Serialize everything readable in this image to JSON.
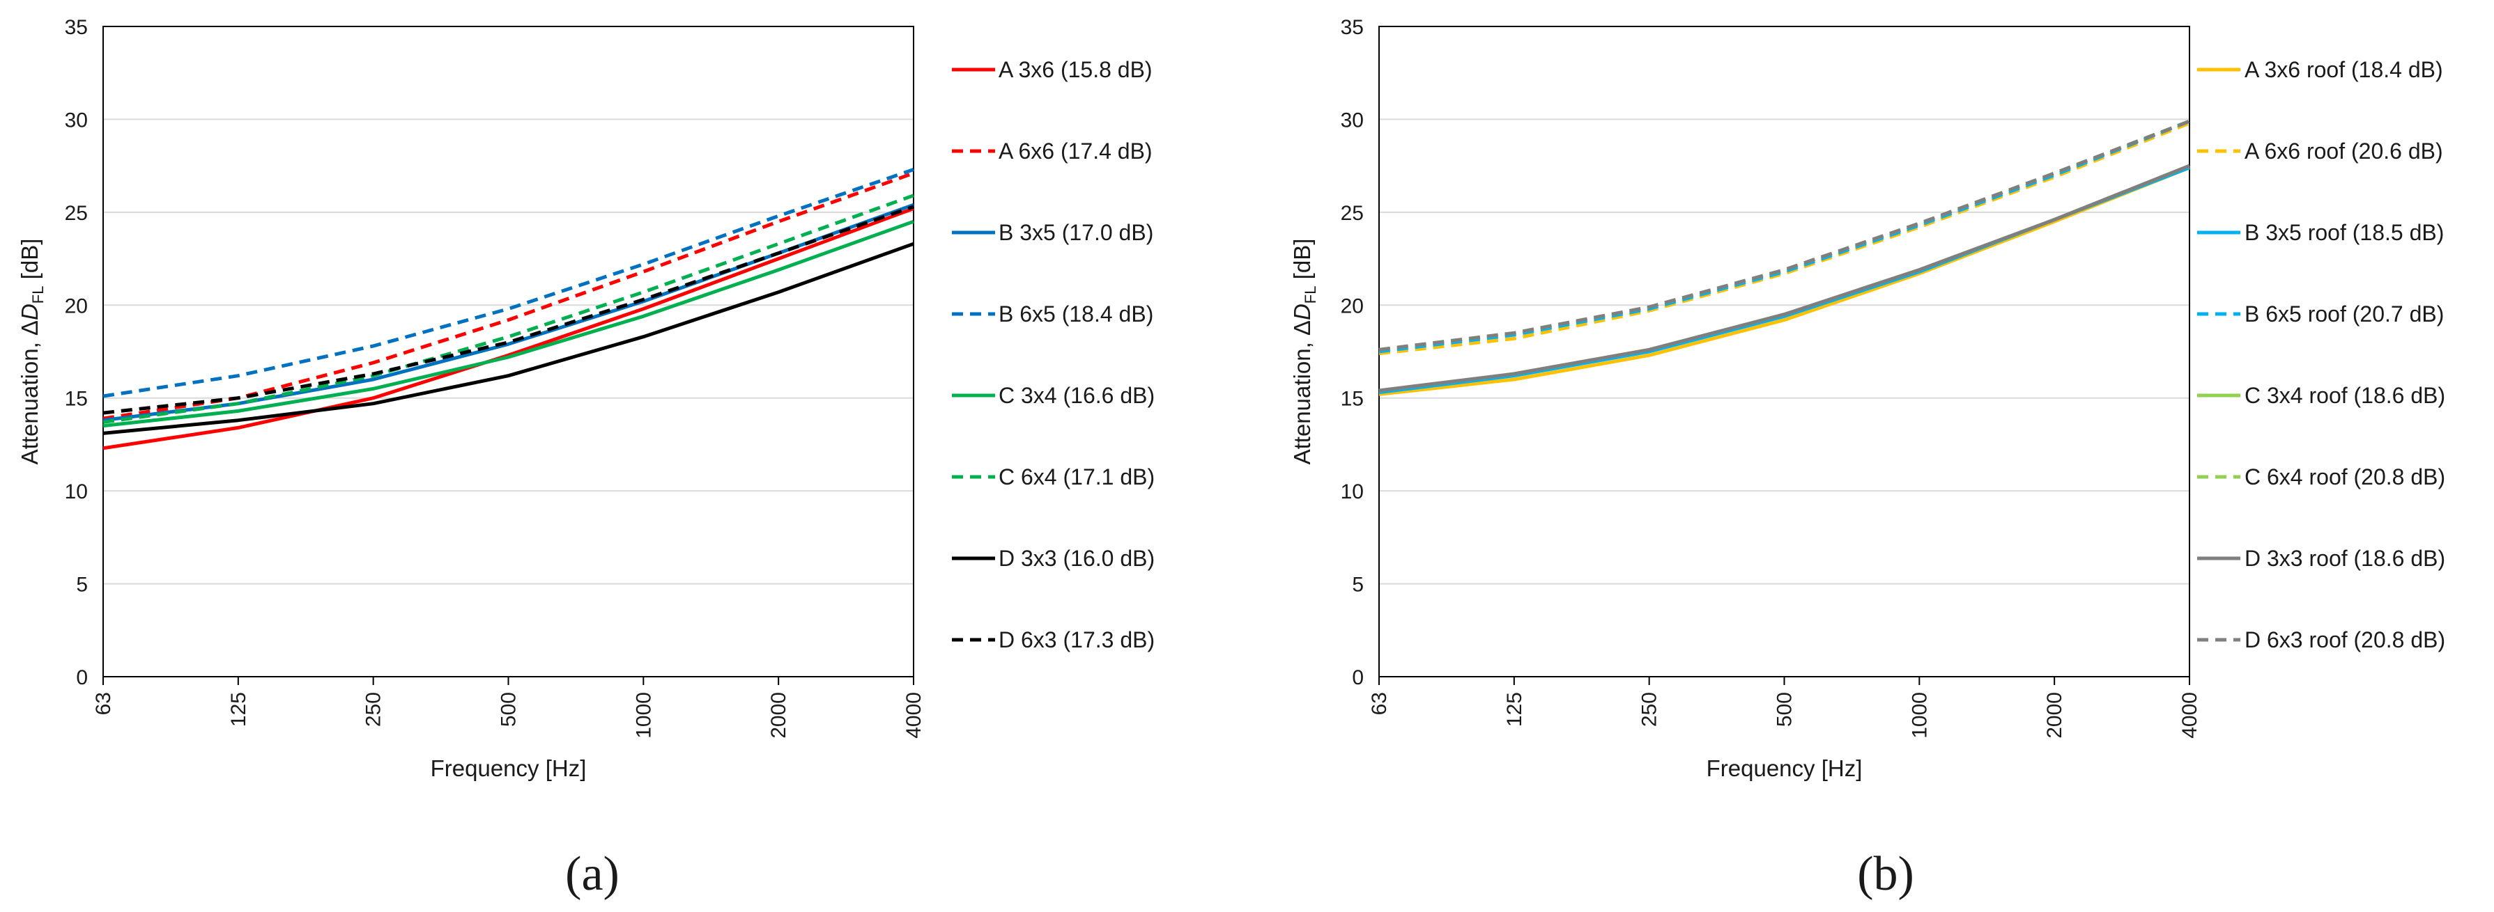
{
  "chart_data": [
    {
      "type": "line",
      "panel_label": "(a)",
      "title": "",
      "xlabel": "Frequency [Hz]",
      "ylabel": {
        "prefix": "Attenuation, Δ",
        "var": "D",
        "sub": "FL",
        "suffix": " [dB]"
      },
      "categories": [
        "63",
        "125",
        "250",
        "500",
        "1000",
        "2000",
        "4000"
      ],
      "ylim": [
        0,
        35
      ],
      "yticks": [
        "0",
        "5",
        "10",
        "15",
        "20",
        "25",
        "30",
        "35"
      ],
      "grid": true,
      "legend_position": "right",
      "series": [
        {
          "name": "A 3x6 (15.8 dB)",
          "color": "#ff0000",
          "dash": "solid",
          "values": [
            12.3,
            13.4,
            15.0,
            17.3,
            19.8,
            22.5,
            25.2
          ]
        },
        {
          "name": "A 6x6 (17.4 dB)",
          "color": "#ff0000",
          "dash": "dashed",
          "values": [
            13.9,
            15.0,
            16.9,
            19.2,
            21.8,
            24.5,
            27.1
          ]
        },
        {
          "name": "B 3x5 (17.0 dB)",
          "color": "#0070c0",
          "dash": "solid",
          "values": [
            13.8,
            14.7,
            16.0,
            17.9,
            20.2,
            22.8,
            25.4
          ]
        },
        {
          "name": "B 6x5 (18.4 dB)",
          "color": "#0070c0",
          "dash": "dashed",
          "values": [
            15.1,
            16.2,
            17.8,
            19.8,
            22.2,
            24.8,
            27.3
          ]
        },
        {
          "name": "C 3x4 (16.6 dB)",
          "color": "#00b050",
          "dash": "solid",
          "values": [
            13.5,
            14.3,
            15.5,
            17.2,
            19.4,
            21.9,
            24.5
          ]
        },
        {
          "name": "C 6x4 (17.1 dB)",
          "color": "#00b050",
          "dash": "dashed",
          "values": [
            13.7,
            14.7,
            16.2,
            18.3,
            20.7,
            23.3,
            25.9
          ]
        },
        {
          "name": "D 3x3 (16.0 dB)",
          "color": "#000000",
          "dash": "solid",
          "values": [
            13.1,
            13.8,
            14.7,
            16.2,
            18.3,
            20.7,
            23.3
          ]
        },
        {
          "name": "D 6x3 (17.3 dB)",
          "color": "#000000",
          "dash": "dashed",
          "values": [
            14.2,
            15.0,
            16.3,
            18.0,
            20.3,
            22.8,
            25.3
          ]
        }
      ]
    },
    {
      "type": "line",
      "panel_label": "(b)",
      "title": "",
      "xlabel": "Frequency [Hz]",
      "ylabel": {
        "prefix": "Attenuation, Δ",
        "var": "D",
        "sub": "FL",
        "suffix": " [dB]"
      },
      "categories": [
        "63",
        "125",
        "250",
        "500",
        "1000",
        "2000",
        "4000"
      ],
      "ylim": [
        0,
        35
      ],
      "yticks": [
        "0",
        "5",
        "10",
        "15",
        "20",
        "25",
        "30",
        "35"
      ],
      "grid": true,
      "legend_position": "right",
      "series": [
        {
          "name": "A 3x6 roof (18.4 dB)",
          "color": "#ffc000",
          "dash": "solid",
          "values": [
            15.2,
            16.0,
            17.3,
            19.2,
            21.7,
            24.5,
            27.4
          ]
        },
        {
          "name": "A 6x6 roof (20.6 dB)",
          "color": "#ffc000",
          "dash": "dashed",
          "values": [
            17.4,
            18.2,
            19.7,
            21.7,
            24.2,
            26.9,
            29.8
          ]
        },
        {
          "name": "B 3x5 roof (18.5 dB)",
          "color": "#00b0f0",
          "dash": "solid",
          "values": [
            15.3,
            16.2,
            17.5,
            19.4,
            21.8,
            24.6,
            27.4
          ]
        },
        {
          "name": "B 6x5 roof (20.7 dB)",
          "color": "#00b0f0",
          "dash": "dashed",
          "values": [
            17.5,
            18.4,
            19.8,
            21.8,
            24.3,
            27.0,
            29.9
          ]
        },
        {
          "name": "C 3x4 roof (18.6 dB)",
          "color": "#92d050",
          "dash": "solid",
          "values": [
            15.4,
            16.3,
            17.6,
            19.5,
            21.9,
            24.6,
            27.5
          ]
        },
        {
          "name": "C 6x4 roof (20.8 dB)",
          "color": "#92d050",
          "dash": "dashed",
          "values": [
            17.6,
            18.5,
            19.9,
            21.9,
            24.4,
            27.1,
            29.9
          ]
        },
        {
          "name": "D 3x3 roof (18.6 dB)",
          "color": "#7f7f7f",
          "dash": "solid",
          "values": [
            15.4,
            16.3,
            17.6,
            19.5,
            21.9,
            24.6,
            27.5
          ]
        },
        {
          "name": "D 6x3 roof (20.8 dB)",
          "color": "#7f7f7f",
          "dash": "dashed",
          "values": [
            17.6,
            18.5,
            19.9,
            21.9,
            24.4,
            27.1,
            29.9
          ]
        }
      ]
    }
  ]
}
